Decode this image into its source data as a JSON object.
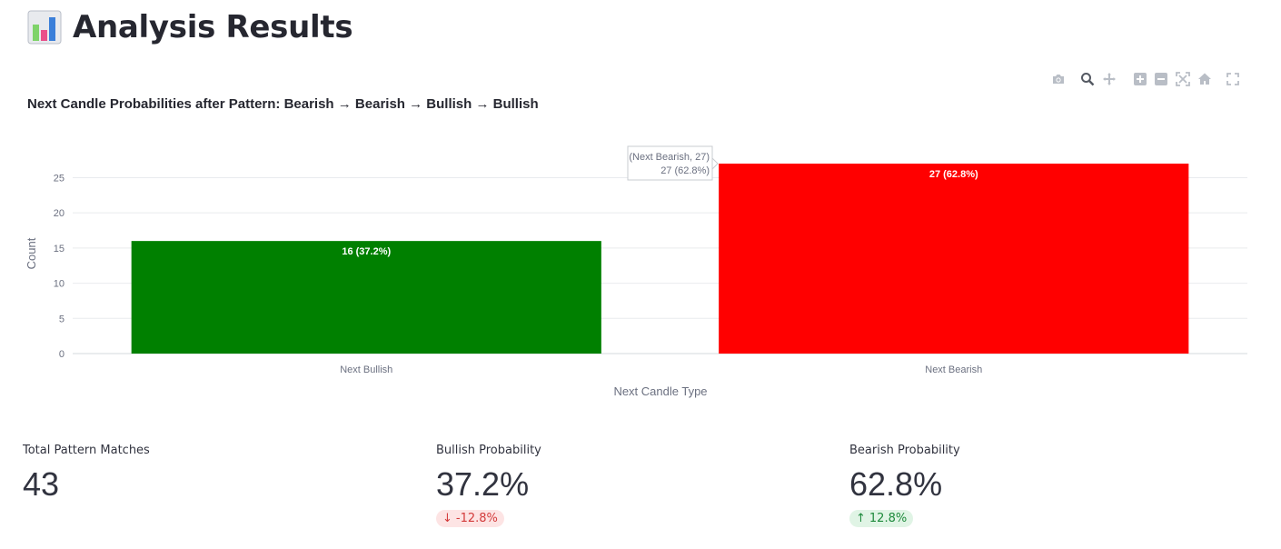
{
  "header": {
    "title": "Analysis Results",
    "icon": "bar-chart-icon"
  },
  "toolbar": {
    "buttons": [
      "camera-icon",
      "zoom-icon",
      "pan-icon",
      "zoom-in-icon",
      "zoom-out-icon",
      "autoscale-icon",
      "reset-axes-icon",
      "fullscreen-icon"
    ]
  },
  "chart_data": {
    "type": "bar",
    "title": "Next Candle Probabilities after Pattern: Bearish → Bearish → Bullish → Bullish",
    "xlabel": "Next Candle Type",
    "ylabel": "Count",
    "categories": [
      "Next Bullish",
      "Next Bearish"
    ],
    "values": [
      16,
      27
    ],
    "bar_labels": [
      "16 (37.2%)",
      "27 (62.8%)"
    ],
    "colors": [
      "#008000",
      "#ff0000"
    ],
    "ylim": [
      0,
      27
    ],
    "yticks": [
      0,
      5,
      10,
      15,
      20,
      25
    ],
    "grid": true,
    "hover": {
      "line1": "(Next Bearish, 27)",
      "line2": "27 (62.8%)"
    }
  },
  "metrics": [
    {
      "label": "Total Pattern Matches",
      "value": "43"
    },
    {
      "label": "Bullish Probability",
      "value": "37.2%",
      "delta": "-12.8%",
      "direction": "down"
    },
    {
      "label": "Bearish Probability",
      "value": "62.8%",
      "delta": "12.8%",
      "direction": "up"
    }
  ]
}
